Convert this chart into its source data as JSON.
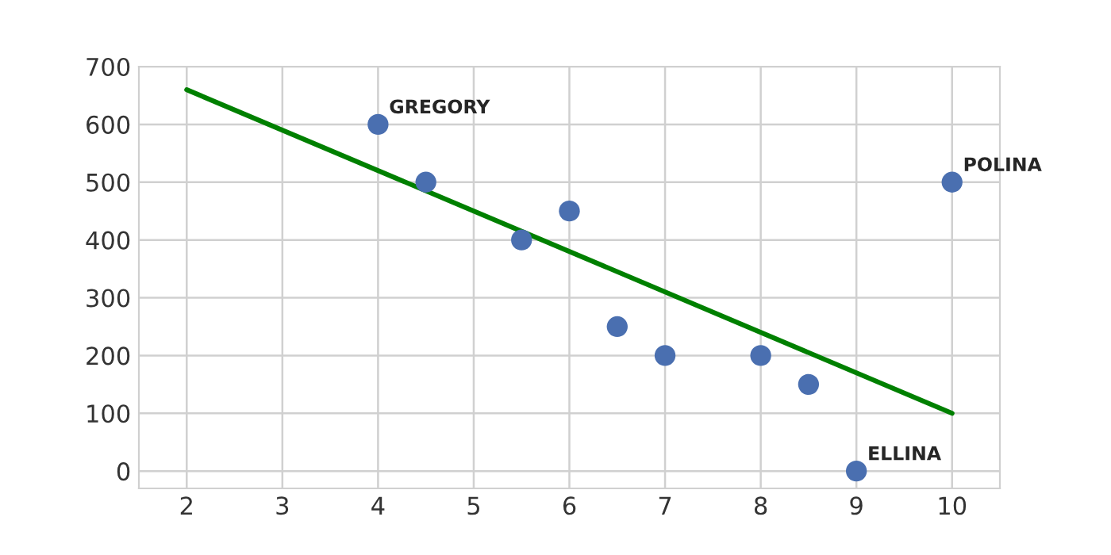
{
  "chart_data": {
    "type": "scatter",
    "xlim": [
      1.5,
      10.5
    ],
    "ylim": [
      -30,
      700
    ],
    "xticks": [
      2,
      3,
      4,
      5,
      6,
      7,
      8,
      9,
      10
    ],
    "yticks": [
      0,
      100,
      200,
      300,
      400,
      500,
      600,
      700
    ],
    "grid": true,
    "series": [
      {
        "marker": "circle",
        "color": "#4a6fb0",
        "x": [
          4,
          4.5,
          5.5,
          6,
          6.5,
          7,
          8,
          8.5,
          9,
          10
        ],
        "values": [
          600,
          500,
          400,
          450,
          250,
          200,
          200,
          150,
          0,
          500
        ]
      },
      {
        "type": "line",
        "marker": "none",
        "color": "#008000",
        "x": [
          2,
          10
        ],
        "values": [
          660,
          100
        ]
      }
    ],
    "annotations": [
      {
        "text": "GREGORY",
        "x": 4,
        "y": 600
      },
      {
        "text": "POLINA",
        "x": 10,
        "y": 500
      },
      {
        "text": "ELLINA",
        "x": 9,
        "y": 0
      }
    ]
  }
}
